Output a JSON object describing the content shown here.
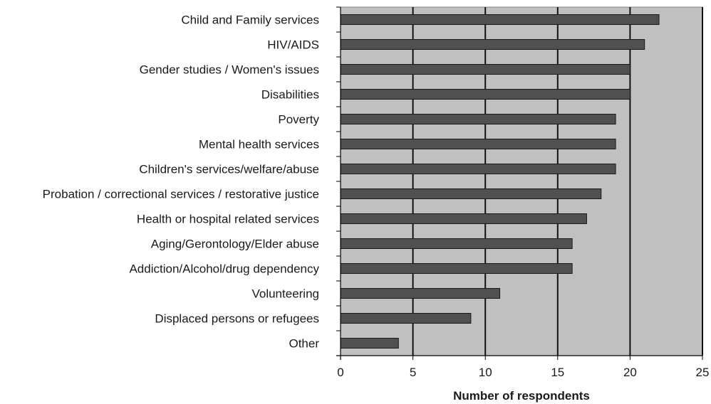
{
  "chart_data": {
    "type": "bar",
    "orientation": "horizontal",
    "title": "",
    "xlabel": "Number of respondents",
    "ylabel": "",
    "xlim": [
      0,
      25
    ],
    "xticks": [
      "0",
      "5",
      "10",
      "15",
      "20",
      "25"
    ],
    "categories": [
      "Child and Family services",
      "HIV/AIDS",
      "Gender studies / Women's issues",
      "Disabilities",
      "Poverty",
      "Mental health services",
      "Children's services/welfare/abuse",
      "Probation / correctional services / restorative justice",
      "Health or hospital related services",
      "Aging/Gerontology/Elder abuse",
      "Addiction/Alcohol/drug dependency",
      "Volunteering",
      "Displaced persons or refugees",
      "Other"
    ],
    "values": [
      22,
      21,
      20,
      20,
      19,
      19,
      19,
      18,
      17,
      16,
      16,
      11,
      9,
      4
    ],
    "grid": "vertical",
    "legend": "none",
    "colors": {
      "bar": "#505050",
      "bar_edge": "#1a1a1a",
      "plot_background": "#c0c0c0",
      "gridline": "#111111",
      "axis": "#000000"
    }
  }
}
